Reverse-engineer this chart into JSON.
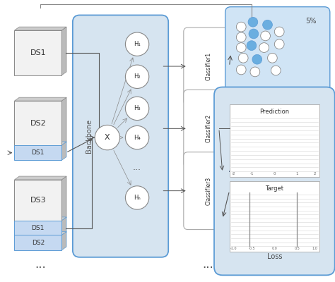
{
  "bg_color": "#ffffff",
  "light_blue": "#c5d9f1",
  "box_blue": "#d6e4f0",
  "scatter_blue": "#d0e4f5",
  "loss_panel_blue": "#d6e4f0",
  "arrow_color": "#555555",
  "backbone_label": "Backbone",
  "pct_label": "5%",
  "prediction_label": "Prediction",
  "target_label": "Target",
  "loss_label": "Loss",
  "nodes": [
    "H₁",
    "H₂",
    "H₃",
    "H₄",
    "...",
    "Hₙ"
  ],
  "classifiers": [
    "Classifier1",
    "Classifier2",
    "Classifier3"
  ]
}
